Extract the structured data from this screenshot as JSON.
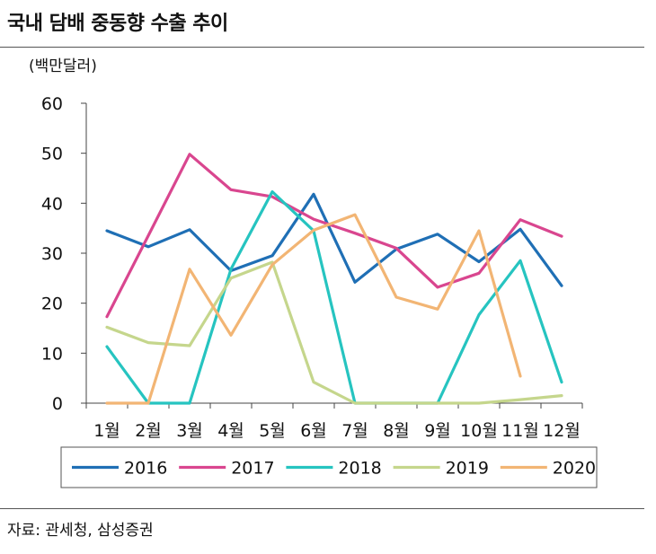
{
  "header": {
    "title": "국내 담배 중동향 수출 추이"
  },
  "footer": {
    "source": "자료: 관세청, 삼성증권"
  },
  "chart_data": {
    "type": "line",
    "title": "국내 담배 중동향 수출 추이",
    "ylabel": "(백만달러)",
    "xlabel": "",
    "categories": [
      "1월",
      "2월",
      "3월",
      "4월",
      "5월",
      "6월",
      "7월",
      "8월",
      "9월",
      "10월",
      "11월",
      "12월"
    ],
    "ylim": [
      0,
      60
    ],
    "yticks": [
      0,
      10,
      20,
      30,
      40,
      50,
      60
    ],
    "grid": false,
    "legend_position": "bottom",
    "series": [
      {
        "name": "2016",
        "color": "#1f6fb5",
        "values": [
          34.5,
          31.3,
          34.7,
          26.5,
          29.5,
          41.8,
          24.2,
          30.8,
          33.8,
          28.3,
          34.8,
          23.5
        ]
      },
      {
        "name": "2017",
        "color": "#d9468f",
        "values": [
          17.3,
          33.5,
          49.8,
          42.7,
          41.3,
          36.8,
          34.0,
          31.0,
          23.2,
          26.0,
          36.7,
          33.4
        ]
      },
      {
        "name": "2018",
        "color": "#26c4c0",
        "values": [
          11.3,
          0,
          0,
          26.8,
          42.3,
          34.5,
          0,
          0,
          0,
          17.7,
          28.5,
          4.2
        ]
      },
      {
        "name": "2019",
        "color": "#c5d68c",
        "values": [
          15.2,
          12.1,
          11.5,
          25.0,
          28.2,
          4.2,
          0,
          0,
          0,
          0,
          0.7,
          1.5
        ]
      },
      {
        "name": "2020",
        "color": "#f2b574",
        "values": [
          0,
          0,
          26.8,
          13.6,
          27.7,
          34.6,
          37.7,
          21.2,
          18.8,
          34.5,
          5.4,
          null
        ]
      }
    ]
  }
}
